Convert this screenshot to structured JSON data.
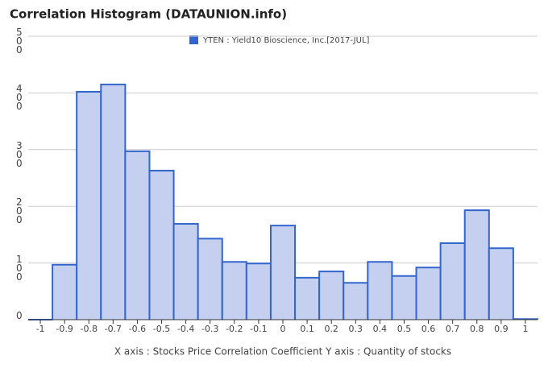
{
  "chart_data": {
    "type": "histogram",
    "title": "Correlation Histogram (DATAUNION.info)",
    "x_label": "X axis : Stocks Price Correlation Coefficient  Y axis : Quantity of stocks",
    "series_name": "YTEN : Yield10 Bioscience, Inc.[2017-JUL]",
    "color": "#3366cc",
    "fill": "#c5d0f0",
    "bins": [
      -1.05,
      -0.95,
      -0.85,
      -0.75,
      -0.65,
      -0.55,
      -0.45,
      -0.35,
      -0.25,
      -0.15,
      -0.05,
      0.05,
      0.15,
      0.25,
      0.35,
      0.45,
      0.55,
      0.65,
      0.75,
      0.85,
      0.95,
      1.05
    ],
    "counts": [
      0,
      97,
      402,
      415,
      297,
      263,
      169,
      143,
      102,
      99,
      166,
      74,
      85,
      65,
      102,
      77,
      92,
      135,
      193,
      126,
      1
    ],
    "xlim": [
      -1.05,
      1.05
    ],
    "xticks": [
      -1,
      -0.9,
      -0.8,
      -0.7,
      -0.6,
      -0.5,
      -0.4,
      -0.3,
      -0.2,
      -0.1,
      0,
      0.1,
      0.2,
      0.3,
      0.4,
      0.5,
      0.6,
      0.7,
      0.8,
      0.9,
      1
    ],
    "ylim": [
      0,
      500
    ],
    "yticks": [
      0,
      100,
      200,
      300,
      400,
      500
    ],
    "grid": true
  }
}
